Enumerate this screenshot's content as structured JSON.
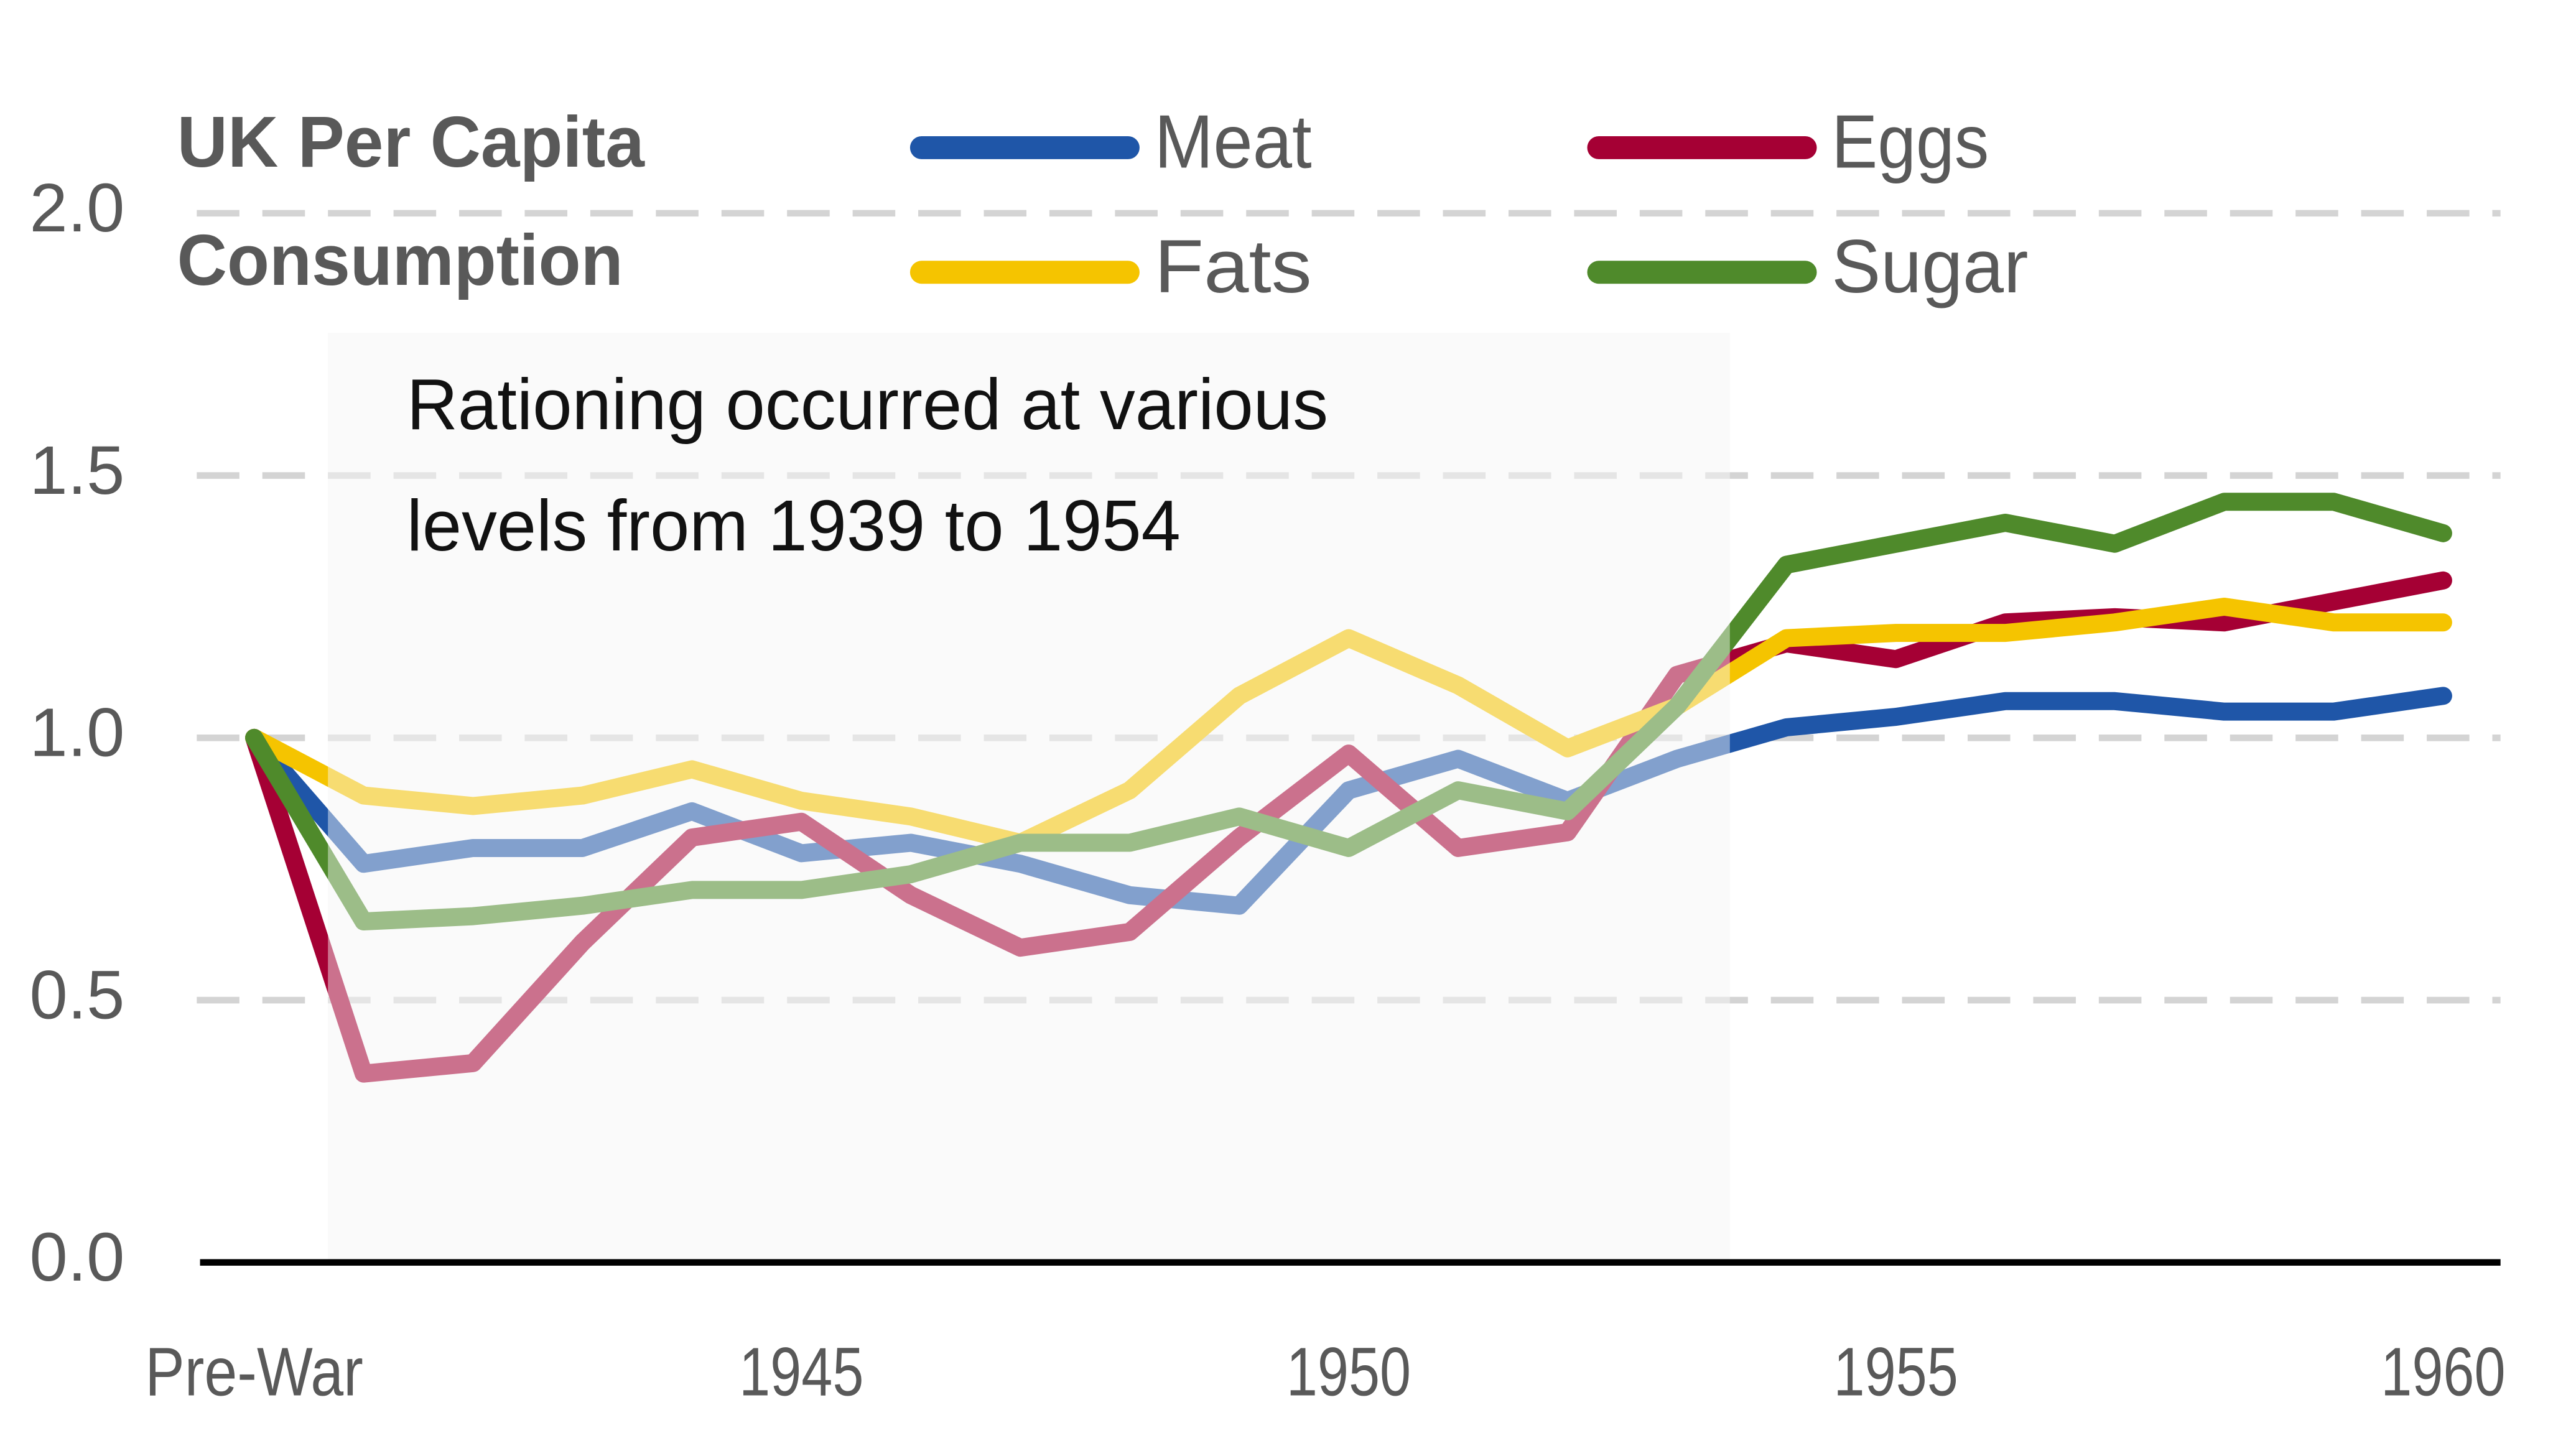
{
  "chart_data": {
    "type": "line",
    "title": [
      "UK Per Capita",
      "Consumption"
    ],
    "annotation": [
      "Rationing occurred at various",
      "levels from 1939 to 1954"
    ],
    "categories": [
      "Pre-War",
      null,
      null,
      null,
      null,
      "1945",
      null,
      null,
      null,
      null,
      "1950",
      null,
      null,
      null,
      null,
      "1955",
      null,
      null,
      null,
      null,
      "1960"
    ],
    "series": [
      {
        "name": "Meat",
        "color": "#1f56a8",
        "values": [
          1.0,
          0.76,
          0.79,
          0.79,
          0.86,
          0.78,
          0.8,
          0.76,
          0.7,
          0.68,
          0.9,
          0.96,
          0.88,
          0.96,
          1.02,
          1.04,
          1.07,
          1.07,
          1.05,
          1.05,
          1.08
        ]
      },
      {
        "name": "Eggs",
        "color": "#a50034",
        "values": [
          1.0,
          0.36,
          0.38,
          0.61,
          0.81,
          0.84,
          0.7,
          0.6,
          0.63,
          0.81,
          0.97,
          0.79,
          0.82,
          1.12,
          1.18,
          1.15,
          1.22,
          1.23,
          1.22,
          1.26,
          1.3
        ]
      },
      {
        "name": "Fats",
        "color": "#f5c400",
        "values": [
          1.0,
          0.89,
          0.87,
          0.89,
          0.94,
          0.88,
          0.85,
          0.8,
          0.9,
          1.08,
          1.19,
          1.1,
          0.98,
          1.06,
          1.19,
          1.2,
          1.2,
          1.22,
          1.25,
          1.22,
          1.22
        ]
      },
      {
        "name": "Sugar",
        "color": "#4f8a2b",
        "values": [
          1.0,
          0.65,
          0.66,
          0.68,
          0.71,
          0.71,
          0.74,
          0.8,
          0.8,
          0.85,
          0.79,
          0.9,
          0.86,
          1.06,
          1.33,
          1.37,
          1.41,
          1.37,
          1.45,
          1.45,
          1.39
        ]
      }
    ],
    "ylim": [
      0,
      2.0
    ],
    "yticks": [
      {
        "value": 0,
        "label": "0.0"
      },
      0.5,
      {
        "value": 1.0,
        "label": "1.0"
      },
      1.5,
      {
        "value": 2.0,
        "label": "2.0"
      }
    ],
    "grid": true,
    "legend": "top"
  }
}
